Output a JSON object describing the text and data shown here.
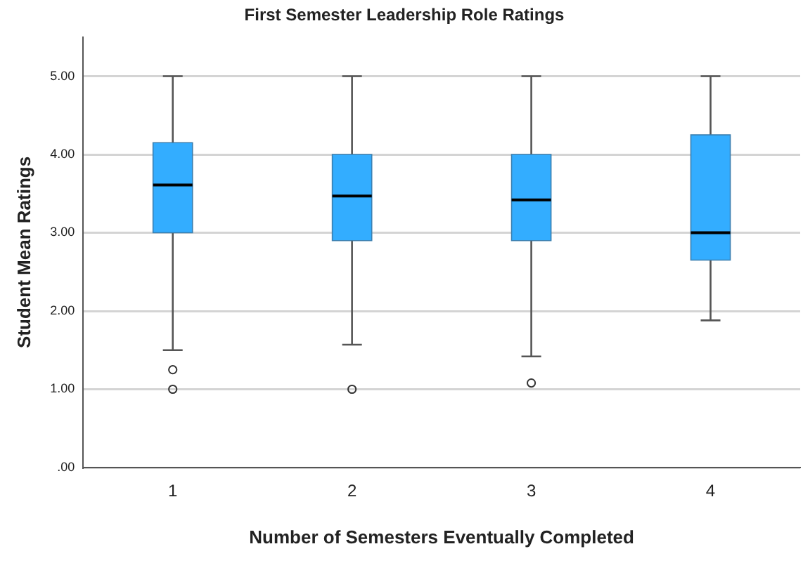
{
  "chart_data": {
    "type": "box",
    "title": "First Semester Leadership Role Ratings",
    "xlabel": "Number of Semesters Eventually Completed",
    "ylabel": "Student Mean Ratings",
    "categories": [
      "1",
      "2",
      "3",
      "4"
    ],
    "color": "#33adff",
    "boxes": [
      {
        "low": 1.5,
        "q1": 3.0,
        "median": 3.61,
        "q3": 4.15,
        "high": 5.0,
        "outliers": [
          1.25,
          1.0
        ]
      },
      {
        "low": 1.57,
        "q1": 2.9,
        "median": 3.47,
        "q3": 4.0,
        "high": 5.0,
        "outliers": [
          1.0
        ]
      },
      {
        "low": 1.42,
        "q1": 2.9,
        "median": 3.42,
        "q3": 4.0,
        "high": 5.0,
        "outliers": [
          1.08
        ]
      },
      {
        "low": 1.88,
        "q1": 2.65,
        "median": 3.0,
        "q3": 4.25,
        "high": 5.0
      }
    ],
    "ylim": [
      0,
      5.5
    ],
    "yticks": [
      {
        "value": 0,
        "label": ".00"
      },
      {
        "value": 1,
        "label": "1.00"
      },
      {
        "value": 2,
        "label": "2.00"
      },
      {
        "value": 3,
        "label": "3.00"
      },
      {
        "value": 4,
        "label": "4.00"
      },
      {
        "value": 5,
        "label": "5.00"
      }
    ],
    "grid": "y"
  }
}
